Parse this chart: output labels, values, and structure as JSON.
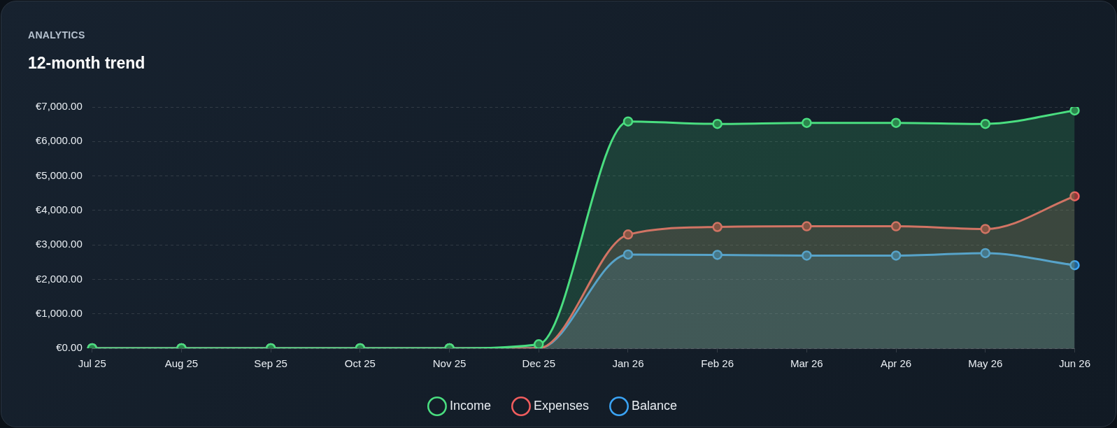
{
  "chart_data": {
    "type": "area",
    "subtitle": "ANALYTICS",
    "title": "12-month trend",
    "categories": [
      "Jul 25",
      "Aug 25",
      "Sep 25",
      "Oct 25",
      "Nov 25",
      "Dec 25",
      "Jan 26",
      "Feb 26",
      "Mar 26",
      "Apr 26",
      "May 26",
      "Jun 26"
    ],
    "series": [
      {
        "name": "Income",
        "color": "#4ade80",
        "values": [
          0,
          0,
          0,
          0,
          0,
          115,
          6580,
          6510,
          6540,
          6540,
          6510,
          6900
        ]
      },
      {
        "name": "Expenses",
        "color": "#f05d5e",
        "values": [
          0,
          0,
          0,
          0,
          0,
          0,
          3300,
          3520,
          3540,
          3540,
          3460,
          4410
        ]
      },
      {
        "name": "Balance",
        "color": "#3ba4f5",
        "values": [
          0,
          0,
          0,
          0,
          0,
          0,
          2720,
          2710,
          2690,
          2690,
          2760,
          2410
        ]
      }
    ],
    "ylim": [
      0,
      7000
    ],
    "yticks": [
      {
        "value": 0,
        "label": "€0.00"
      },
      {
        "value": 1000,
        "label": "€1,000.00"
      },
      {
        "value": 2000,
        "label": "€2,000.00"
      },
      {
        "value": 3000,
        "label": "€3,000.00"
      },
      {
        "value": 4000,
        "label": "€4,000.00"
      },
      {
        "value": 5000,
        "label": "€5,000.00"
      },
      {
        "value": 6000,
        "label": "€6,000.00"
      },
      {
        "value": 7000,
        "label": "€7,000.00"
      }
    ],
    "grid": "y",
    "legend": "bottom",
    "marker": "circle",
    "line_style": "solid"
  }
}
